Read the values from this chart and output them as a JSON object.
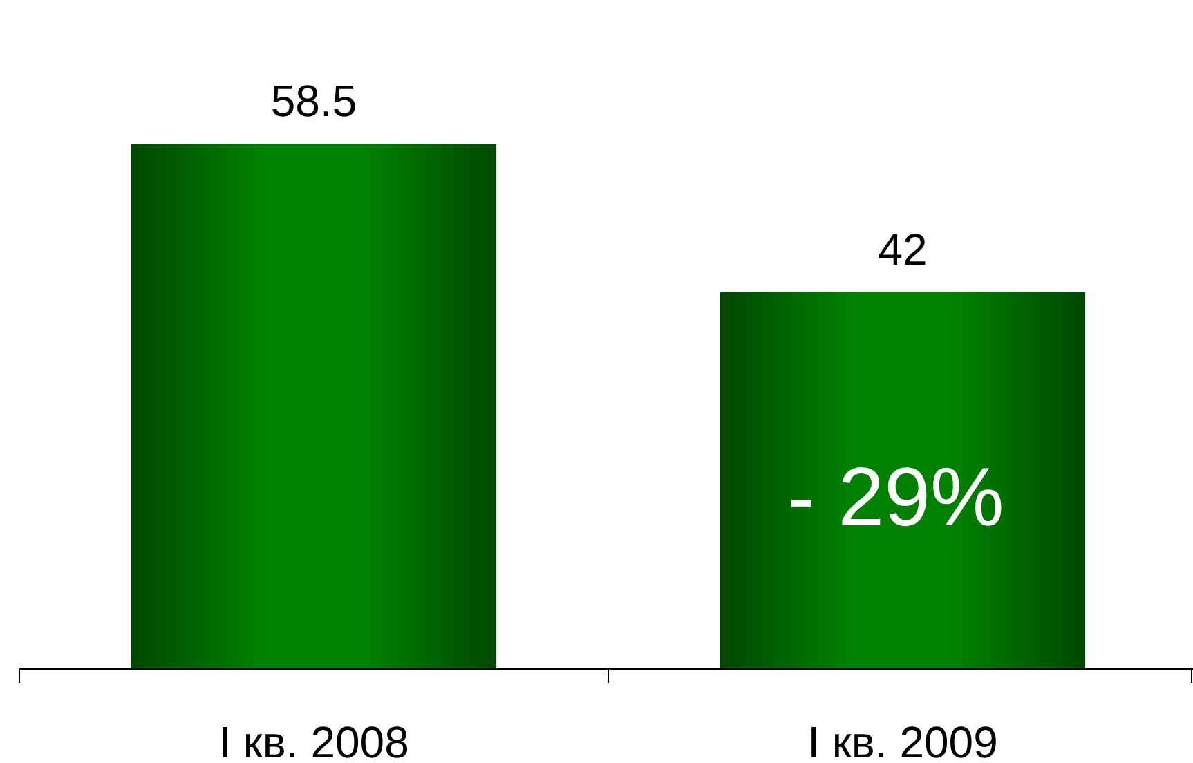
{
  "chart_data": {
    "type": "bar",
    "categories": [
      "I кв. 2008",
      "I кв. 2009"
    ],
    "values": [
      58.5,
      42
    ],
    "color": "#008000",
    "data_labels": true,
    "annotations": [
      "- 29%"
    ]
  }
}
